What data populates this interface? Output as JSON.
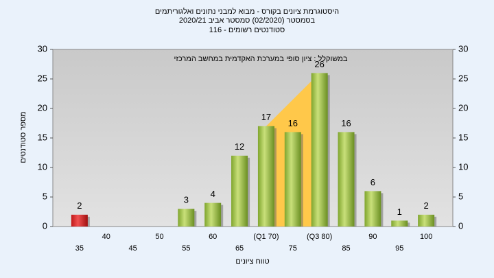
{
  "chart_data": {
    "type": "bar",
    "title": [
      "היסטוגרמת ציונים בקורס - מבוא למבני נתונים ואלגוריתמים",
      "בסמסטר  (02/2020)  סמסטר אביב 2020/21",
      "סטודנטים רשומים - 116"
    ],
    "annotation": "במשוקלל : ציון סופי במערכת האקדמית במחשב המרכזי",
    "x_label": "טווח ציונים",
    "y_label": "מספר סטודנטים",
    "categories": [
      "35",
      "40",
      "45",
      "50",
      "55",
      "60",
      "65",
      "(Q1 70)",
      "75",
      "(Q3 80)",
      "85",
      "90",
      "95",
      "100"
    ],
    "values": [
      2,
      0,
      0,
      0,
      3,
      4,
      12,
      17,
      16,
      26,
      16,
      6,
      1,
      2
    ],
    "colors": [
      "red",
      "green",
      "green",
      "green",
      "green",
      "green",
      "green",
      "green",
      "green",
      "green",
      "green",
      "green",
      "green",
      "green"
    ],
    "ylim": [
      0,
      30
    ],
    "yticks": [
      0,
      5,
      10,
      15,
      20,
      25,
      30
    ],
    "y2lim": [
      0,
      30
    ],
    "y2ticks": [
      0,
      5,
      10,
      15,
      20,
      25,
      30
    ]
  }
}
